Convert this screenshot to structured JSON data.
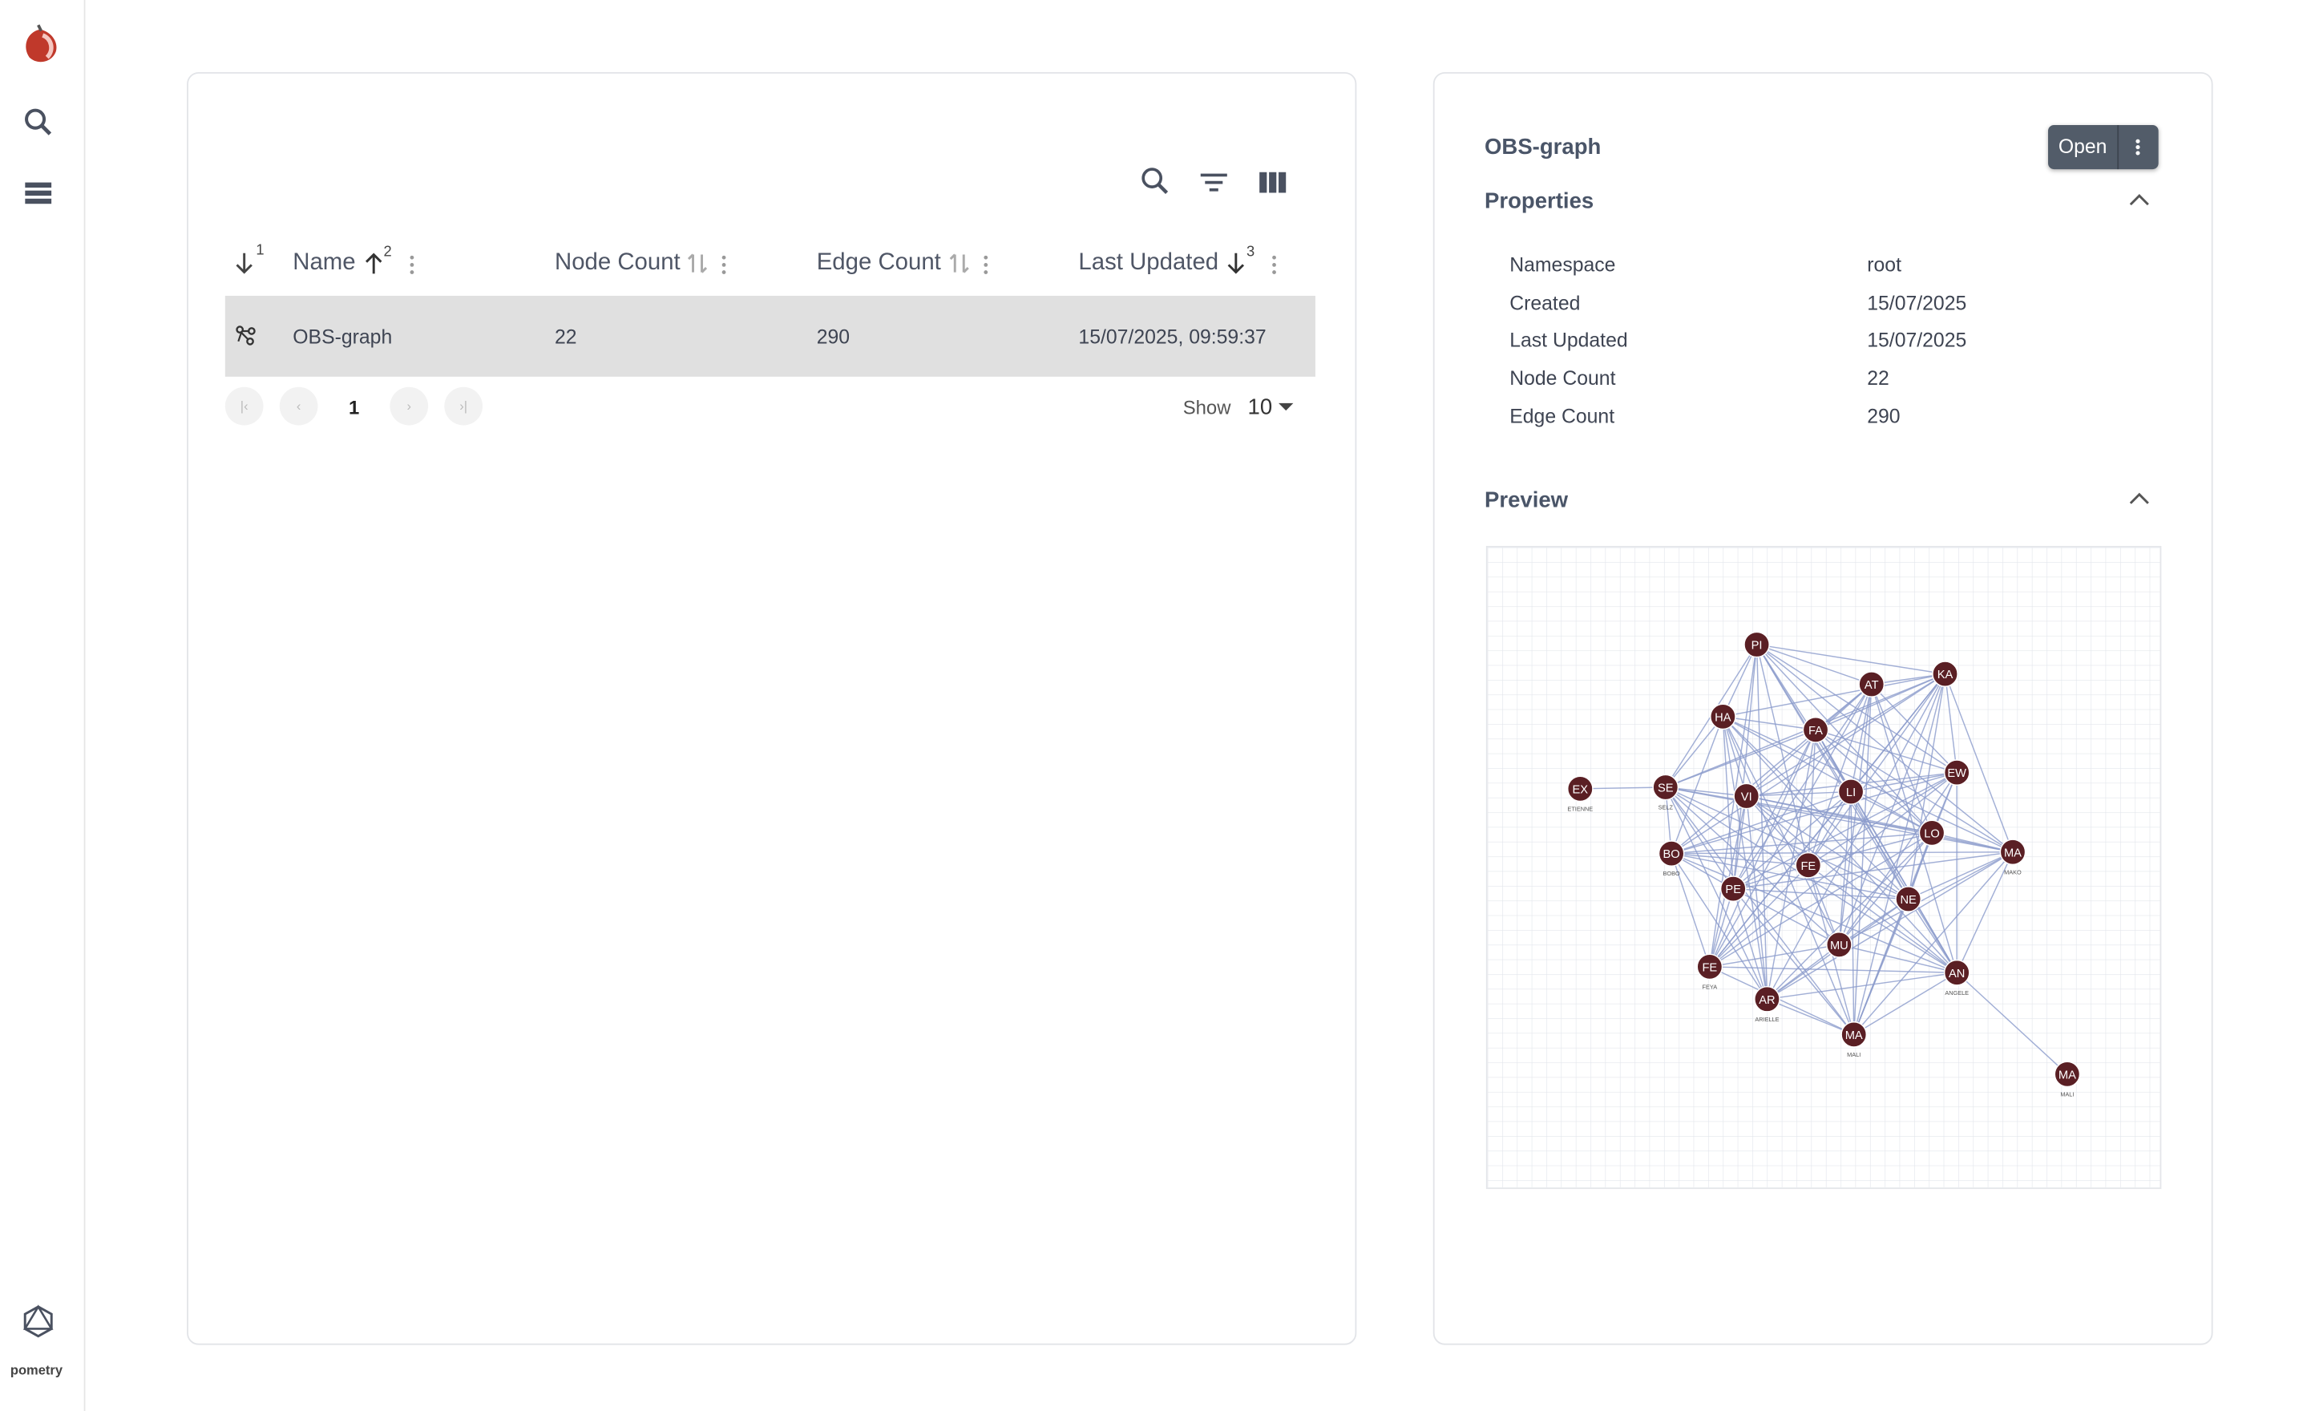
{
  "sidebar": {
    "brand": "pometry"
  },
  "table": {
    "first_sort_order": "1",
    "columns": [
      {
        "label": "Name",
        "sort_order": "2"
      },
      {
        "label": "Node Count"
      },
      {
        "label": "Edge Count"
      },
      {
        "label": "Last Updated",
        "sort_order": "3"
      }
    ],
    "rows": [
      [
        "OBS-graph",
        "22",
        "290",
        "15/07/2025, 09:59:37"
      ]
    ]
  },
  "pagination": {
    "page": "1",
    "show_label": "Show",
    "page_size": "10"
  },
  "details": {
    "title": "OBS-graph",
    "open_button": "Open",
    "properties_heading": "Properties",
    "properties": [
      [
        "Namespace",
        "root"
      ],
      [
        "Created",
        "15/07/2025"
      ],
      [
        "Last Updated",
        "15/07/2025"
      ],
      [
        "Node Count",
        "22"
      ],
      [
        "Edge Count",
        "290"
      ]
    ],
    "preview_heading": "Preview",
    "nodes": [
      {
        "label": "PI"
      },
      {
        "label": "AT"
      },
      {
        "label": "KA"
      },
      {
        "label": "HA"
      },
      {
        "label": "FA"
      },
      {
        "label": "EW"
      },
      {
        "label": "EX",
        "name": "ETIENNE"
      },
      {
        "label": "SE",
        "name": "SELZ"
      },
      {
        "label": "VI"
      },
      {
        "label": "LI"
      },
      {
        "label": "LO"
      },
      {
        "label": "MA",
        "name": "MAKO"
      },
      {
        "label": "BO",
        "name": "BOBO"
      },
      {
        "label": "FE"
      },
      {
        "label": "PE"
      },
      {
        "label": "NE"
      },
      {
        "label": "MU"
      },
      {
        "label": "FE",
        "name": "FEYA"
      },
      {
        "label": "AN",
        "name": "ANGELE"
      },
      {
        "label": "AR",
        "name": "ARIELLE"
      },
      {
        "label": "MA",
        "name": "MALI"
      },
      {
        "label": "MA",
        "name": "MALI"
      }
    ]
  }
}
